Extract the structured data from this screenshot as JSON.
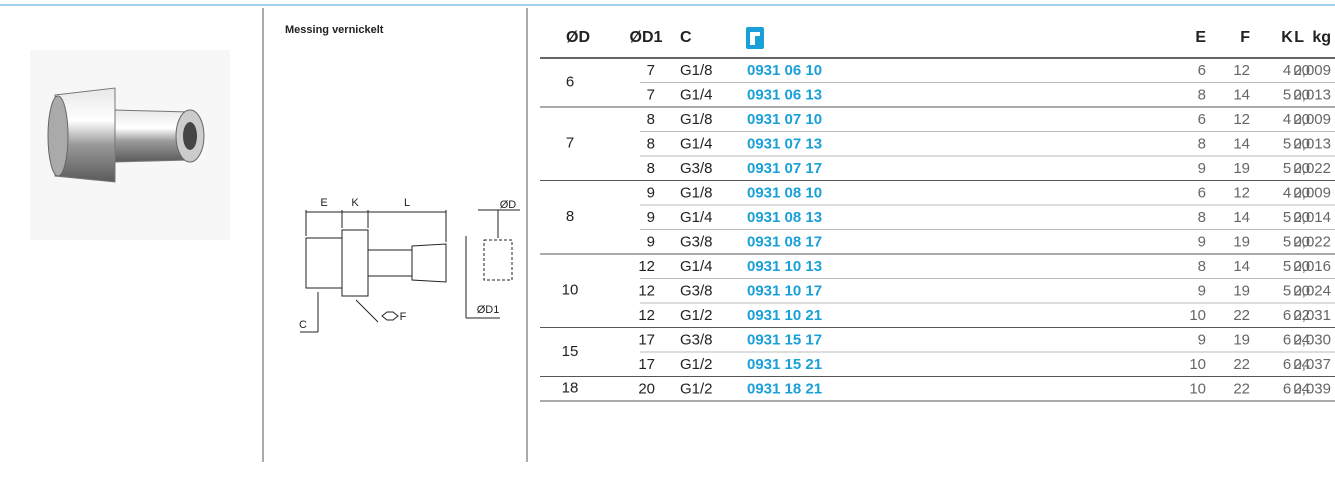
{
  "header": {
    "material": "Messing vernickelt"
  },
  "drawing": {
    "labels": {
      "e": "E",
      "k": "K",
      "l": "L",
      "d": "ØD",
      "d1": "ØD1",
      "c": "C",
      "f": "F"
    }
  },
  "table": {
    "columns": {
      "od": "ØD",
      "d1": "ØD1",
      "c": "C",
      "e": "E",
      "f": "F",
      "k": "K",
      "l": "L",
      "kg": "kg"
    },
    "groups": [
      {
        "od": "6",
        "rows": [
          [
            "7",
            "G1/8",
            "0931 06 10",
            "6",
            "12",
            "4",
            "20",
            "0,009"
          ],
          [
            "7",
            "G1/4",
            "0931 06 13",
            "8",
            "14",
            "5",
            "20",
            "0,013"
          ]
        ]
      },
      {
        "od": "7",
        "rows": [
          [
            "8",
            "G1/8",
            "0931 07 10",
            "6",
            "12",
            "4",
            "20",
            "0,009"
          ],
          [
            "8",
            "G1/4",
            "0931 07 13",
            "8",
            "14",
            "5",
            "20",
            "0,013"
          ],
          [
            "8",
            "G3/8",
            "0931 07 17",
            "9",
            "19",
            "5",
            "20",
            "0,022"
          ]
        ]
      },
      {
        "od": "8",
        "rows": [
          [
            "9",
            "G1/8",
            "0931 08 10",
            "6",
            "12",
            "4",
            "20",
            "0,009"
          ],
          [
            "9",
            "G1/4",
            "0931 08 13",
            "8",
            "14",
            "5",
            "20",
            "0,014"
          ],
          [
            "9",
            "G3/8",
            "0931 08 17",
            "9",
            "19",
            "5",
            "20",
            "0,022"
          ]
        ]
      },
      {
        "od": "10",
        "rows": [
          [
            "12",
            "G1/4",
            "0931 10 13",
            "8",
            "14",
            "5",
            "20",
            "0,016"
          ],
          [
            "12",
            "G3/8",
            "0931 10 17",
            "9",
            "19",
            "5",
            "20",
            "0,024"
          ],
          [
            "12",
            "G1/2",
            "0931 10 21",
            "10",
            "22",
            "6",
            "22",
            "0,031"
          ]
        ]
      },
      {
        "od": "15",
        "rows": [
          [
            "17",
            "G3/8",
            "0931 15 17",
            "9",
            "19",
            "6",
            "24",
            "0,030"
          ],
          [
            "17",
            "G1/2",
            "0931 15 21",
            "10",
            "22",
            "6",
            "24",
            "0,037"
          ]
        ]
      },
      {
        "od": "18",
        "rows": [
          [
            "20",
            "G1/2",
            "0931 18 21",
            "10",
            "22",
            "6",
            "24",
            "0,039"
          ]
        ]
      }
    ]
  }
}
